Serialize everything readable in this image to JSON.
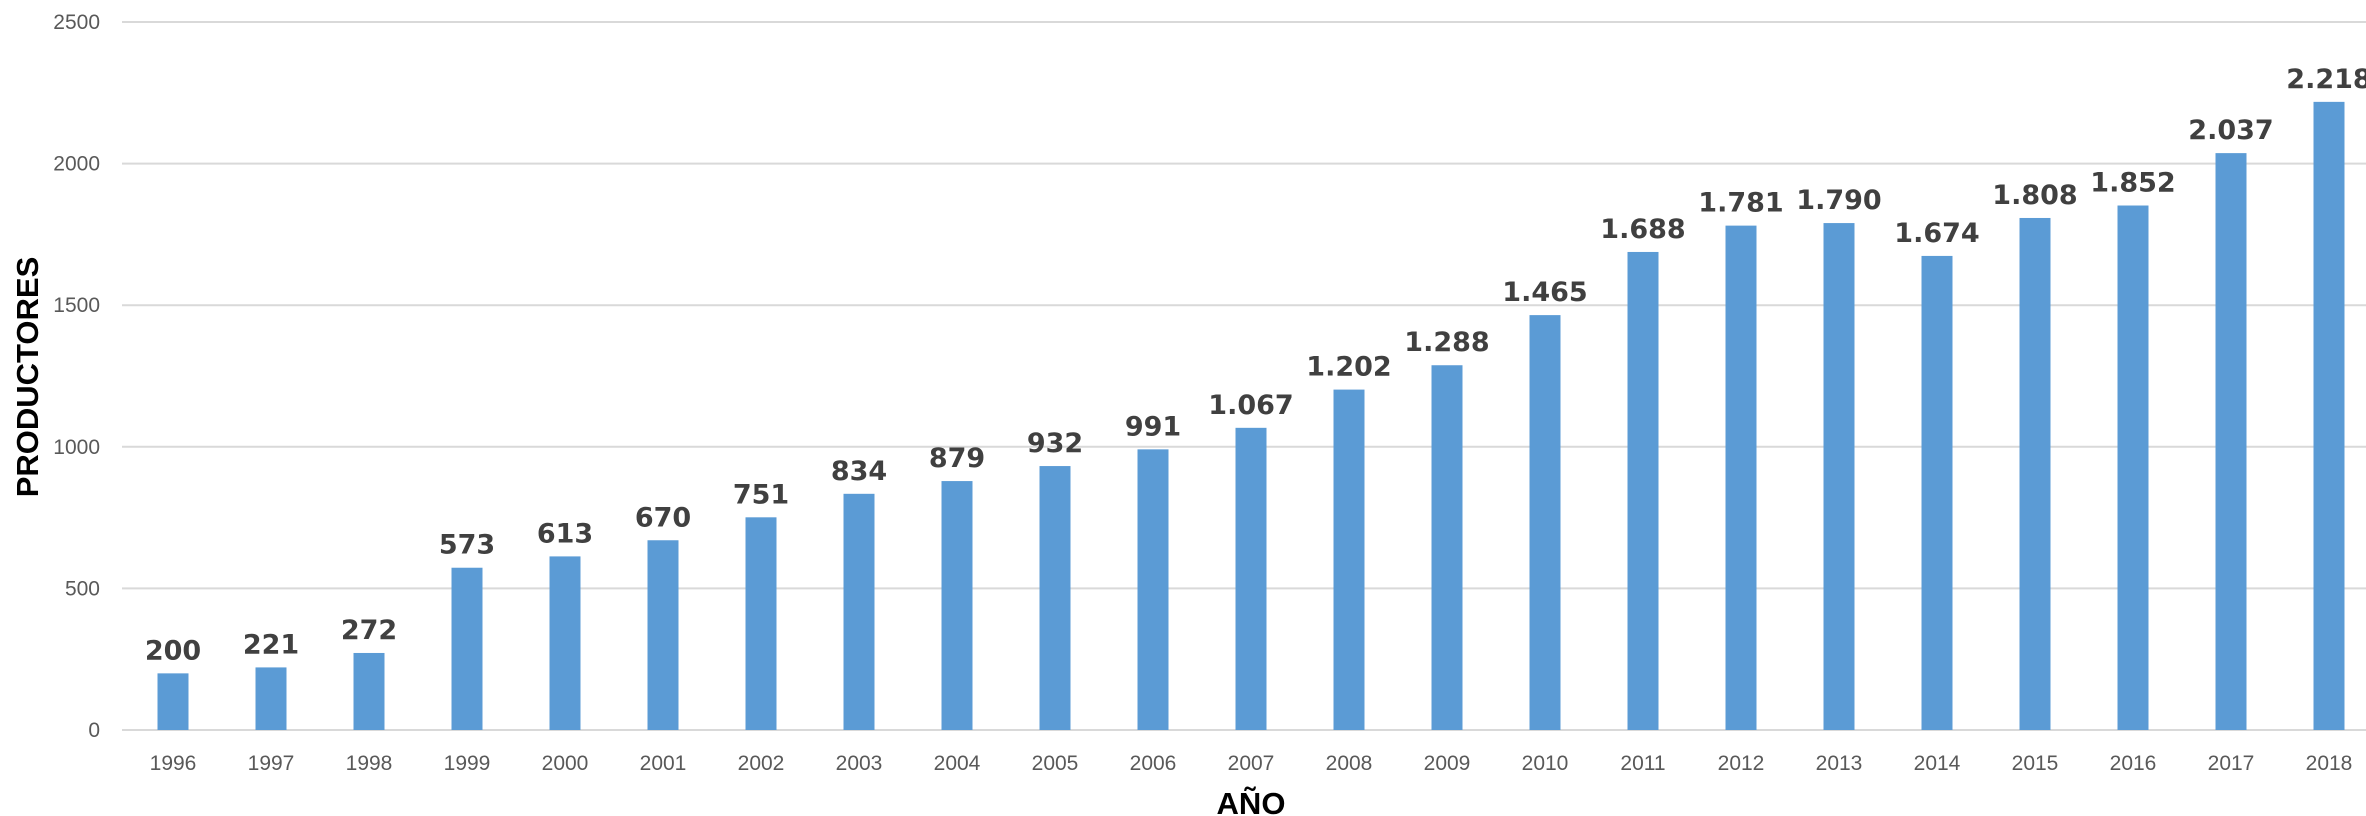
{
  "chart_data": {
    "type": "bar",
    "xlabel": "AÑO",
    "ylabel": "PRODUCTORES",
    "categories": [
      "1996",
      "1997",
      "1998",
      "1999",
      "2000",
      "2001",
      "2002",
      "2003",
      "2004",
      "2005",
      "2006",
      "2007",
      "2008",
      "2009",
      "2010",
      "2011",
      "2012",
      "2013",
      "2014",
      "2015",
      "2016",
      "2017",
      "2018"
    ],
    "values": [
      200,
      221,
      272,
      573,
      613,
      670,
      751,
      834,
      879,
      932,
      991,
      1067,
      1202,
      1288,
      1465,
      1688,
      1781,
      1790,
      1674,
      1808,
      1852,
      2037,
      2218
    ],
    "data_labels": [
      "200",
      "221",
      "272",
      "573",
      "613",
      "670",
      "751",
      "834",
      "879",
      "932",
      "991",
      "1.067",
      "1.202",
      "1.288",
      "1.465",
      "1.688",
      "1.781",
      "1.790",
      "1.674",
      "1.808",
      "1.852",
      "2.037",
      "2.218"
    ],
    "yticks": [
      "0",
      "500",
      "1000",
      "1500",
      "2000",
      "2500"
    ],
    "ylim": [
      0,
      2500
    ],
    "grid": true,
    "legend": "none",
    "bar_color": "#5b9bd5"
  }
}
